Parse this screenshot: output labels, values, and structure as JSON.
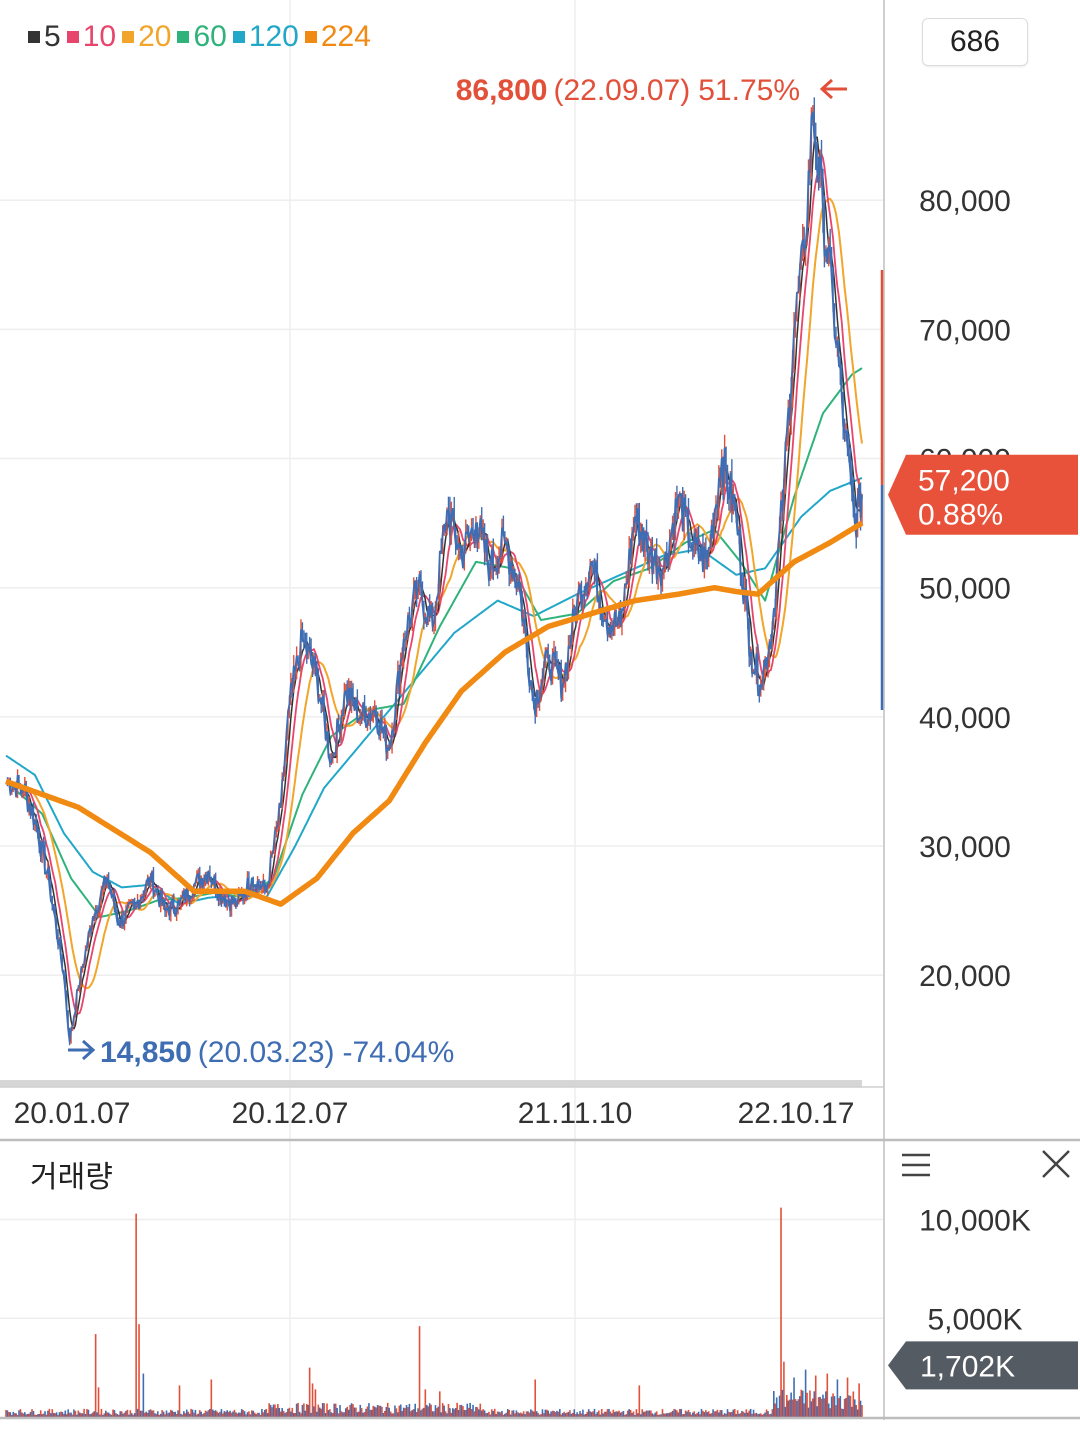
{
  "legend": [
    {
      "label": "5",
      "color": "#333333"
    },
    {
      "label": "10",
      "color": "#e8456d"
    },
    {
      "label": "20",
      "color": "#f2a52b"
    },
    {
      "label": "60",
      "color": "#2fb37a"
    },
    {
      "label": "120",
      "color": "#22a7c9"
    },
    {
      "label": "224",
      "color": "#f08a12"
    }
  ],
  "count_badge": "686",
  "volume_title": "거래량",
  "colors": {
    "price_line": "#3f6db3",
    "up": "#e2503a",
    "down": "#3f6db3",
    "grid": "#eeeeee",
    "current_badge": "#e8523a",
    "volume_badge": "#555b63"
  },
  "icons": {
    "menu": "hamburger-menu-icon",
    "close": "close-icon"
  },
  "chart_data": [
    {
      "type": "line",
      "y_ticks": [
        "80,000",
        "70,000",
        "60,000",
        "50,000",
        "40,000",
        "30,000",
        "20,000"
      ],
      "y_tick_values": [
        80000,
        70000,
        60000,
        50000,
        40000,
        30000,
        20000
      ],
      "ylim": [
        11500,
        95500
      ],
      "x_ticks": [
        "20.01.07",
        "20.12.07",
        "21.11.10",
        "22.10.17"
      ],
      "grid": true,
      "high_annotation": {
        "value": "86,800",
        "date": "(22.09.07)",
        "change": "51.75%"
      },
      "low_annotation": {
        "value": "14,850",
        "date": "(20.03.23)",
        "change": "-74.04%"
      },
      "current": {
        "value": "57,200",
        "change": "0.88%",
        "y": 57200
      },
      "price_anchors": [
        [
          0,
          35000
        ],
        [
          12,
          34500
        ],
        [
          20,
          32000
        ],
        [
          30,
          27000
        ],
        [
          40,
          20000
        ],
        [
          44,
          14850
        ],
        [
          50,
          19000
        ],
        [
          60,
          24500
        ],
        [
          70,
          27500
        ],
        [
          78,
          24000
        ],
        [
          90,
          25500
        ],
        [
          100,
          27500
        ],
        [
          110,
          25000
        ],
        [
          120,
          25500
        ],
        [
          130,
          27000
        ],
        [
          140,
          28000
        ],
        [
          150,
          26000
        ],
        [
          160,
          25500
        ],
        [
          170,
          27500
        ],
        [
          180,
          26500
        ],
        [
          190,
          33000
        ],
        [
          196,
          41000
        ],
        [
          205,
          46000
        ],
        [
          215,
          43000
        ],
        [
          225,
          36500
        ],
        [
          235,
          42000
        ],
        [
          245,
          40000
        ],
        [
          255,
          40500
        ],
        [
          265,
          37500
        ],
        [
          275,
          46000
        ],
        [
          285,
          50000
        ],
        [
          295,
          47000
        ],
        [
          305,
          56000
        ],
        [
          315,
          52500
        ],
        [
          325,
          55000
        ],
        [
          335,
          51500
        ],
        [
          345,
          53500
        ],
        [
          355,
          50000
        ],
        [
          365,
          41000
        ],
        [
          375,
          44500
        ],
        [
          385,
          42500
        ],
        [
          395,
          49000
        ],
        [
          405,
          52000
        ],
        [
          415,
          47500
        ],
        [
          425,
          47000
        ],
        [
          435,
          55500
        ],
        [
          445,
          52500
        ],
        [
          455,
          51500
        ],
        [
          465,
          57000
        ],
        [
          475,
          53000
        ],
        [
          485,
          52000
        ],
        [
          495,
          60000
        ],
        [
          505,
          55500
        ],
        [
          515,
          45000
        ],
        [
          522,
          42500
        ],
        [
          530,
          47000
        ],
        [
          538,
          58000
        ],
        [
          545,
          70000
        ],
        [
          552,
          76000
        ],
        [
          558,
          86800
        ],
        [
          565,
          79000
        ],
        [
          572,
          72000
        ],
        [
          580,
          62000
        ],
        [
          587,
          55000
        ],
        [
          592,
          57200
        ]
      ],
      "ma224_anchors": [
        [
          0,
          35000
        ],
        [
          50,
          33000
        ],
        [
          100,
          29500
        ],
        [
          130,
          26500
        ],
        [
          165,
          26500
        ],
        [
          190,
          25500
        ],
        [
          215,
          27500
        ],
        [
          240,
          31000
        ],
        [
          265,
          33500
        ],
        [
          290,
          38000
        ],
        [
          315,
          42000
        ],
        [
          345,
          45000
        ],
        [
          375,
          47000
        ],
        [
          405,
          48000
        ],
        [
          435,
          49000
        ],
        [
          465,
          49500
        ],
        [
          490,
          50000
        ],
        [
          505,
          49700
        ],
        [
          520,
          49500
        ],
        [
          545,
          52000
        ],
        [
          570,
          53500
        ],
        [
          592,
          55000
        ]
      ],
      "ma120_anchors": [
        [
          0,
          37000
        ],
        [
          20,
          35500
        ],
        [
          40,
          31000
        ],
        [
          60,
          28000
        ],
        [
          80,
          26800
        ],
        [
          100,
          27000
        ],
        [
          120,
          25500
        ],
        [
          140,
          26000
        ],
        [
          160,
          26200
        ],
        [
          180,
          26000
        ],
        [
          200,
          30000
        ],
        [
          220,
          34500
        ],
        [
          250,
          38500
        ],
        [
          280,
          42500
        ],
        [
          310,
          46500
        ],
        [
          340,
          49000
        ],
        [
          365,
          47800
        ],
        [
          395,
          49500
        ],
        [
          425,
          51000
        ],
        [
          455,
          52500
        ],
        [
          480,
          53000
        ],
        [
          505,
          51000
        ],
        [
          525,
          51500
        ],
        [
          550,
          55500
        ],
        [
          570,
          57500
        ],
        [
          592,
          58500
        ]
      ],
      "ma60_anchors": [
        [
          0,
          35000
        ],
        [
          25,
          32500
        ],
        [
          45,
          27500
        ],
        [
          65,
          24500
        ],
        [
          85,
          25000
        ],
        [
          105,
          25800
        ],
        [
          125,
          26000
        ],
        [
          145,
          26400
        ],
        [
          165,
          26000
        ],
        [
          185,
          27500
        ],
        [
          205,
          34000
        ],
        [
          225,
          38500
        ],
        [
          250,
          40500
        ],
        [
          275,
          41000
        ],
        [
          300,
          47000
        ],
        [
          325,
          52000
        ],
        [
          350,
          51500
        ],
        [
          370,
          47500
        ],
        [
          395,
          48000
        ],
        [
          420,
          50500
        ],
        [
          445,
          51500
        ],
        [
          470,
          53500
        ],
        [
          490,
          54500
        ],
        [
          508,
          52000
        ],
        [
          525,
          49000
        ],
        [
          545,
          57000
        ],
        [
          565,
          63500
        ],
        [
          585,
          66500
        ],
        [
          592,
          67000
        ]
      ]
    },
    {
      "type": "bar",
      "title": "거래량",
      "y_ticks": [
        "10,000K",
        "5,000K"
      ],
      "y_tick_values": [
        10000,
        5000
      ],
      "ylim": [
        0,
        12000
      ],
      "unit": "K",
      "current": {
        "label": "1,702K",
        "y": 1702
      },
      "spikes": [
        [
          62,
          4200
        ],
        [
          64,
          1500
        ],
        [
          90,
          10300
        ],
        [
          92,
          4700
        ],
        [
          95,
          2200
        ],
        [
          120,
          1600
        ],
        [
          142,
          1900
        ],
        [
          210,
          2500
        ],
        [
          212,
          1700
        ],
        [
          214,
          1400
        ],
        [
          286,
          4600
        ],
        [
          290,
          1400
        ],
        [
          300,
          1300
        ],
        [
          366,
          1900
        ],
        [
          438,
          1600
        ],
        [
          536,
          10600
        ],
        [
          538,
          2800
        ],
        [
          545,
          2000
        ],
        [
          553,
          2400
        ],
        [
          560,
          2100
        ],
        [
          568,
          2200
        ],
        [
          575,
          1900
        ],
        [
          582,
          2000
        ],
        [
          590,
          1702
        ]
      ]
    }
  ]
}
